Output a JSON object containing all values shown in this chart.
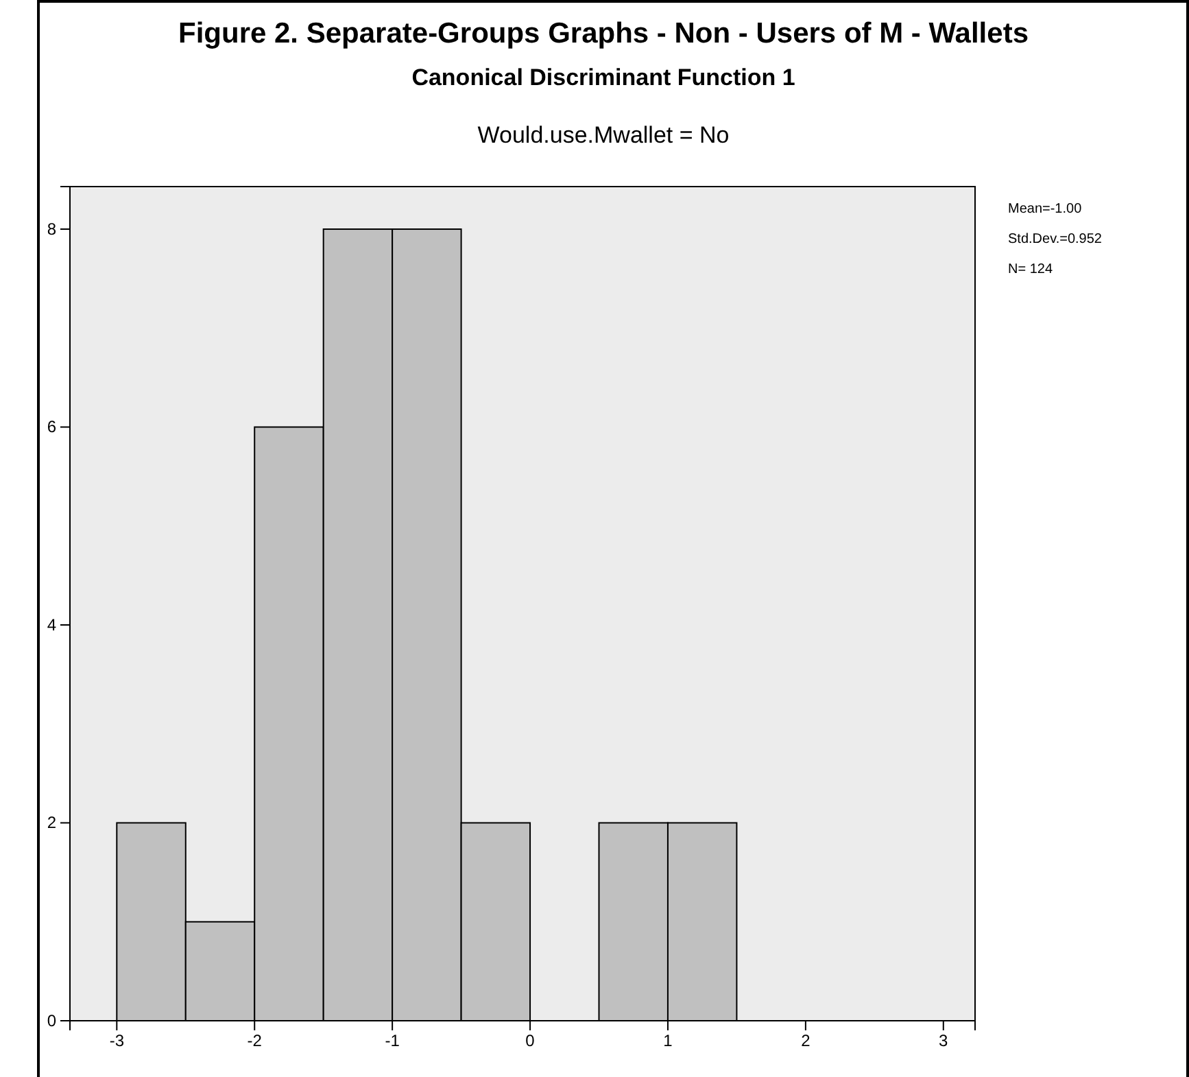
{
  "chart_data": {
    "type": "histogram",
    "title": "Figure 2. Separate-Groups Graphs - Non - Users of M - Wallets",
    "subtitle": "Canonical Discriminant Function 1",
    "annotations": [
      "Would.use.Mwallet = No",
      "Mean=-1.00",
      "Std.Dev.=0.952",
      "N= 124"
    ],
    "bins": [
      -3,
      -2.5,
      -2,
      -1.5,
      -1,
      -0.5,
      0,
      0.5,
      1,
      1.5
    ],
    "values": [
      2,
      1,
      6,
      8,
      8,
      2,
      0,
      2,
      2
    ],
    "color": "#c0c0c0",
    "xlim": [
      -3.34,
      3.23
    ],
    "xticks": [
      -3,
      -2,
      -1,
      0,
      1,
      2,
      3
    ],
    "ylim": [
      0,
      8.43
    ],
    "yticks": [
      0,
      2,
      4,
      6,
      8
    ],
    "grid": false
  }
}
